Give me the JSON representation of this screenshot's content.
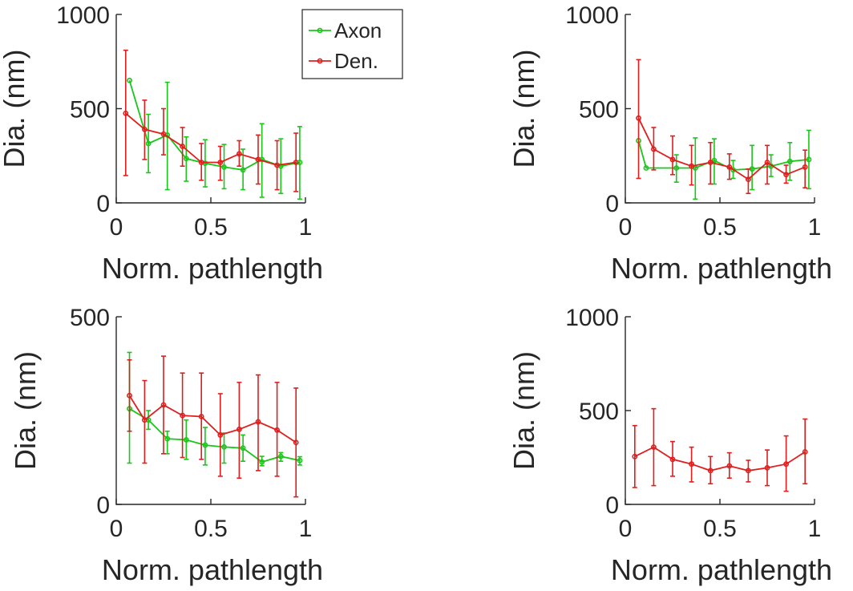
{
  "colors": {
    "Axon": "#19c619",
    "Den.": "#e01e1e",
    "axis": "#262626"
  },
  "chart_data": [
    {
      "type": "line",
      "xlabel": "Norm. pathlength",
      "ylabel": "Dia. (nm)",
      "xlim": [
        0,
        1
      ],
      "ylim": [
        0,
        1000
      ],
      "xticks": [
        "0",
        "0.5",
        "1"
      ],
      "yticks": [
        "0",
        "500",
        "1000"
      ],
      "xtick_values": [
        0,
        0.5,
        1
      ],
      "ytick_values": [
        0,
        500,
        1000
      ],
      "legend": {
        "placement": "top-right",
        "entries": [
          "Axon",
          "Den."
        ]
      },
      "series": [
        {
          "name": "Axon",
          "x": [
            0.07,
            0.17,
            0.27,
            0.37,
            0.47,
            0.57,
            0.67,
            0.77,
            0.87,
            0.97
          ],
          "values": [
            650,
            315,
            360,
            235,
            210,
            190,
            175,
            230,
            195,
            215
          ],
          "err_low": [
            650,
            160,
            70,
            115,
            85,
            75,
            70,
            30,
            50,
            20
          ],
          "err_high": [
            650,
            470,
            640,
            350,
            335,
            310,
            285,
            420,
            340,
            405
          ]
        },
        {
          "name": "Den.",
          "x": [
            0.05,
            0.15,
            0.25,
            0.35,
            0.45,
            0.55,
            0.65,
            0.75,
            0.85,
            0.95
          ],
          "values": [
            475,
            390,
            365,
            300,
            215,
            215,
            260,
            230,
            200,
            215
          ],
          "err_low": [
            145,
            230,
            255,
            195,
            120,
            120,
            195,
            100,
            70,
            60
          ],
          "err_high": [
            810,
            545,
            500,
            400,
            315,
            300,
            330,
            360,
            330,
            370
          ]
        }
      ]
    },
    {
      "type": "line",
      "xlabel": "Norm. pathlength",
      "ylabel": "Dia. (nm)",
      "xlim": [
        0,
        1
      ],
      "ylim": [
        0,
        1000
      ],
      "xticks": [
        "0",
        "0.5",
        "1"
      ],
      "yticks": [
        "0",
        "500",
        "1000"
      ],
      "xtick_values": [
        0,
        0.5,
        1
      ],
      "ytick_values": [
        0,
        500,
        1000
      ],
      "series": [
        {
          "name": "Axon",
          "x": [
            0.07,
            0.11,
            0.27,
            0.37,
            0.47,
            0.57,
            0.67,
            0.77,
            0.87,
            0.97
          ],
          "values": [
            330,
            185,
            185,
            185,
            225,
            175,
            180,
            195,
            220,
            230
          ],
          "err_low": [
            330,
            185,
            110,
            20,
            100,
            130,
            70,
            140,
            120,
            75
          ],
          "err_high": [
            330,
            185,
            255,
            345,
            340,
            225,
            305,
            255,
            320,
            385
          ]
        },
        {
          "name": "Den.",
          "x": [
            0.07,
            0.15,
            0.25,
            0.35,
            0.45,
            0.55,
            0.65,
            0.75,
            0.85,
            0.95
          ],
          "values": [
            450,
            285,
            230,
            195,
            215,
            190,
            125,
            215,
            150,
            190
          ],
          "err_low": [
            130,
            175,
            150,
            95,
            100,
            125,
            50,
            100,
            105,
            80
          ],
          "err_high": [
            760,
            400,
            355,
            305,
            320,
            260,
            180,
            305,
            200,
            280
          ]
        }
      ]
    },
    {
      "type": "line",
      "xlabel": "Norm. pathlength",
      "ylabel": "Dia. (nm)",
      "xlim": [
        0,
        1
      ],
      "ylim": [
        0,
        500
      ],
      "xticks": [
        "0",
        "0.5",
        "1"
      ],
      "yticks": [
        "0",
        "500"
      ],
      "xtick_values": [
        0,
        0.5,
        1
      ],
      "ytick_values": [
        0,
        500
      ],
      "series": [
        {
          "name": "Axon",
          "x": [
            0.07,
            0.17,
            0.27,
            0.37,
            0.47,
            0.57,
            0.67,
            0.77,
            0.87,
            0.97
          ],
          "values": [
            255,
            225,
            175,
            172,
            158,
            153,
            150,
            113,
            128,
            117
          ],
          "err_low": [
            110,
            200,
            135,
            120,
            105,
            110,
            115,
            103,
            115,
            105
          ],
          "err_high": [
            405,
            250,
            195,
            225,
            205,
            190,
            185,
            128,
            138,
            127
          ]
        },
        {
          "name": "Den.",
          "x": [
            0.07,
            0.15,
            0.25,
            0.35,
            0.45,
            0.55,
            0.65,
            0.75,
            0.85,
            0.95
          ],
          "values": [
            290,
            225,
            265,
            237,
            234,
            185,
            200,
            220,
            198,
            165
          ],
          "err_low": [
            195,
            110,
            135,
            125,
            120,
            75,
            70,
            90,
            75,
            20
          ],
          "err_high": [
            385,
            330,
            395,
            350,
            350,
            295,
            325,
            345,
            325,
            310
          ]
        }
      ]
    },
    {
      "type": "line",
      "xlabel": "Norm. pathlength",
      "ylabel": "Dia. (nm)",
      "xlim": [
        0,
        1
      ],
      "ylim": [
        0,
        1000
      ],
      "xticks": [
        "0",
        "0.5",
        "1"
      ],
      "yticks": [
        "0",
        "500",
        "1000"
      ],
      "xtick_values": [
        0,
        0.5,
        1
      ],
      "ytick_values": [
        0,
        500,
        1000
      ],
      "series": [
        {
          "name": "Den.",
          "x": [
            0.05,
            0.15,
            0.25,
            0.35,
            0.45,
            0.55,
            0.65,
            0.75,
            0.85,
            0.95
          ],
          "values": [
            255,
            305,
            240,
            215,
            180,
            205,
            180,
            195,
            215,
            280
          ],
          "err_low": [
            90,
            100,
            150,
            120,
            110,
            140,
            120,
            100,
            70,
            110
          ],
          "err_high": [
            420,
            510,
            335,
            305,
            255,
            275,
            235,
            290,
            365,
            455
          ]
        }
      ]
    }
  ]
}
